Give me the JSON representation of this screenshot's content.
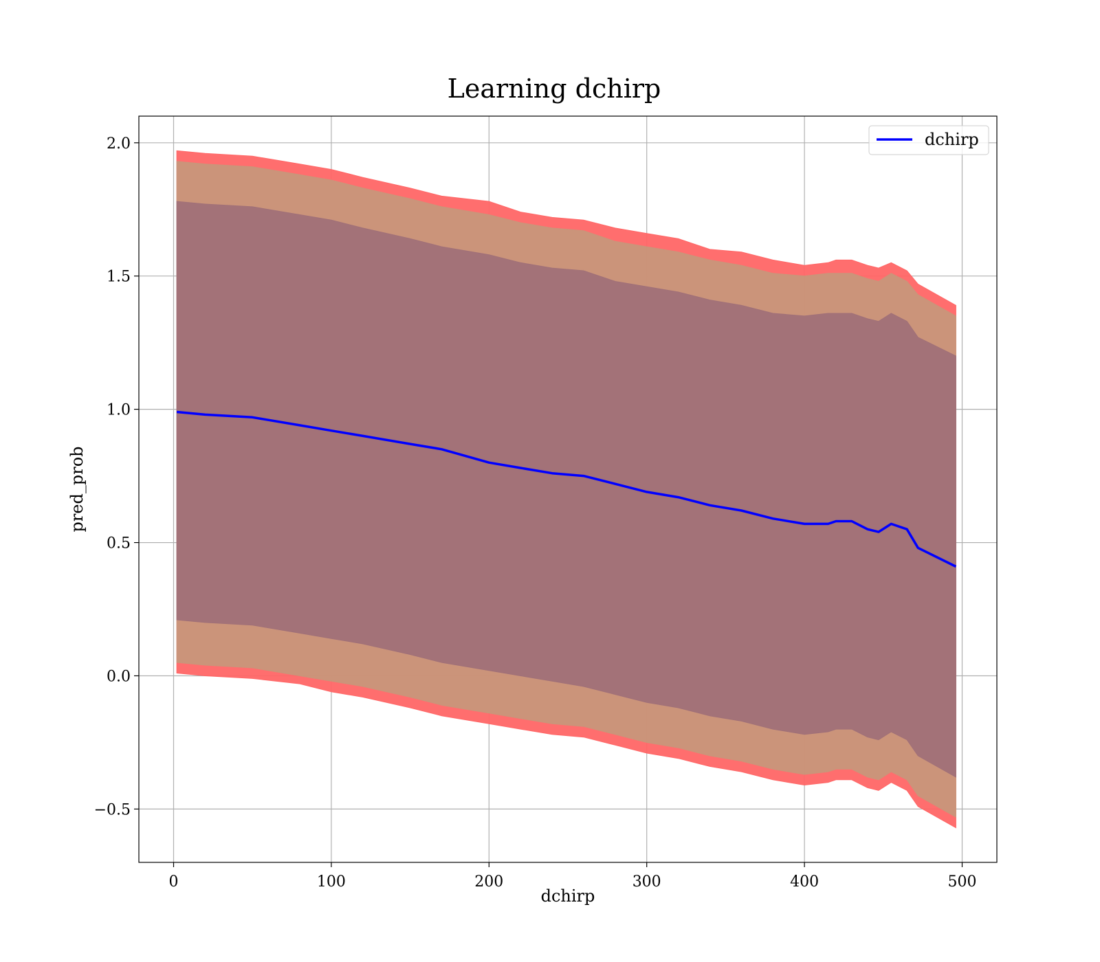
{
  "chart_data": {
    "type": "line",
    "title": "Learning dchirp",
    "xlabel": "dchirp",
    "ylabel": "pred_prob",
    "xlim": [
      -22,
      522
    ],
    "ylim": [
      -0.7,
      2.1
    ],
    "xticks": [
      0,
      100,
      200,
      300,
      400,
      500
    ],
    "yticks": [
      -0.5,
      0.0,
      0.5,
      1.0,
      1.5,
      2.0
    ],
    "xtick_labels": [
      "0",
      "100",
      "200",
      "300",
      "400",
      "500"
    ],
    "ytick_labels": [
      "−0.5",
      "0.0",
      "0.5",
      "1.0",
      "1.5",
      "2.0"
    ],
    "grid": true,
    "legend_position": "top-right",
    "x": [
      2,
      20,
      50,
      80,
      100,
      120,
      150,
      170,
      200,
      220,
      240,
      260,
      280,
      300,
      320,
      340,
      360,
      380,
      400,
      415,
      420,
      430,
      440,
      447,
      455,
      465,
      472,
      496
    ],
    "series": [
      {
        "name": "dchirp",
        "kind": "line",
        "color": "#0000ff",
        "values": [
          0.99,
          0.98,
          0.97,
          0.94,
          0.92,
          0.9,
          0.87,
          0.85,
          0.8,
          0.78,
          0.76,
          0.75,
          0.72,
          0.69,
          0.67,
          0.64,
          0.62,
          0.59,
          0.57,
          0.57,
          0.58,
          0.58,
          0.55,
          0.54,
          0.57,
          0.55,
          0.48,
          0.41
        ]
      }
    ],
    "bands": [
      {
        "kind": "band-outer",
        "color": "#ff6666",
        "upper": [
          1.97,
          1.96,
          1.95,
          1.92,
          1.9,
          1.87,
          1.83,
          1.8,
          1.78,
          1.74,
          1.72,
          1.71,
          1.68,
          1.66,
          1.64,
          1.6,
          1.59,
          1.56,
          1.54,
          1.55,
          1.56,
          1.56,
          1.54,
          1.53,
          1.55,
          1.52,
          1.47,
          1.39
        ],
        "lower": [
          0.01,
          0.0,
          -0.01,
          -0.03,
          -0.06,
          -0.08,
          -0.12,
          -0.15,
          -0.18,
          -0.2,
          -0.22,
          -0.23,
          -0.26,
          -0.29,
          -0.31,
          -0.34,
          -0.36,
          -0.39,
          -0.41,
          -0.4,
          -0.39,
          -0.39,
          -0.42,
          -0.43,
          -0.4,
          -0.43,
          -0.49,
          -0.57
        ]
      },
      {
        "kind": "band-middle",
        "color": "#c8967a",
        "upper": [
          1.93,
          1.92,
          1.91,
          1.88,
          1.86,
          1.83,
          1.79,
          1.76,
          1.73,
          1.7,
          1.68,
          1.67,
          1.63,
          1.61,
          1.59,
          1.56,
          1.54,
          1.51,
          1.5,
          1.51,
          1.51,
          1.51,
          1.49,
          1.48,
          1.51,
          1.48,
          1.43,
          1.35
        ],
        "lower": [
          0.05,
          0.04,
          0.03,
          0.0,
          -0.02,
          -0.04,
          -0.08,
          -0.11,
          -0.14,
          -0.16,
          -0.18,
          -0.19,
          -0.22,
          -0.25,
          -0.27,
          -0.3,
          -0.32,
          -0.35,
          -0.37,
          -0.36,
          -0.35,
          -0.35,
          -0.38,
          -0.39,
          -0.36,
          -0.39,
          -0.45,
          -0.53
        ]
      },
      {
        "kind": "band-inner",
        "color": "#a07078",
        "upper": [
          1.78,
          1.77,
          1.76,
          1.73,
          1.71,
          1.68,
          1.64,
          1.61,
          1.58,
          1.55,
          1.53,
          1.52,
          1.48,
          1.46,
          1.44,
          1.41,
          1.39,
          1.36,
          1.35,
          1.36,
          1.36,
          1.36,
          1.34,
          1.33,
          1.36,
          1.33,
          1.27,
          1.2
        ],
        "lower": [
          0.21,
          0.2,
          0.19,
          0.16,
          0.14,
          0.12,
          0.08,
          0.05,
          0.02,
          0.0,
          -0.02,
          -0.04,
          -0.07,
          -0.1,
          -0.12,
          -0.15,
          -0.17,
          -0.2,
          -0.22,
          -0.21,
          -0.2,
          -0.2,
          -0.23,
          -0.24,
          -0.21,
          -0.24,
          -0.3,
          -0.38
        ]
      }
    ]
  }
}
